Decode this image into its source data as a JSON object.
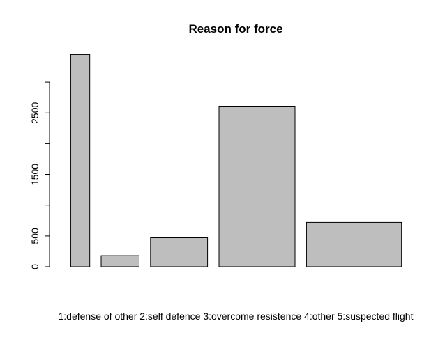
{
  "chart_data": {
    "type": "bar",
    "title": "Reason for force",
    "xlabel": "",
    "ylabel": "",
    "categories": [
      "1",
      "2",
      "3",
      "4",
      "5"
    ],
    "values": [
      3450,
      180,
      470,
      2610,
      720
    ],
    "widths": [
      1.0,
      2.0,
      3.0,
      4.0,
      5.0
    ],
    "yticks": [
      0,
      500,
      1000,
      1500,
      2000,
      2500,
      3000
    ],
    "ytick_labels": [
      "0",
      "500",
      "",
      "1500",
      "",
      "2500",
      ""
    ],
    "ylim": [
      0,
      3600
    ],
    "footer_text": "1:defense of other  2:self defence 3:overcome resistence 4:other 5:suspected flight",
    "bar_color": "#bebebe",
    "grid": false
  }
}
